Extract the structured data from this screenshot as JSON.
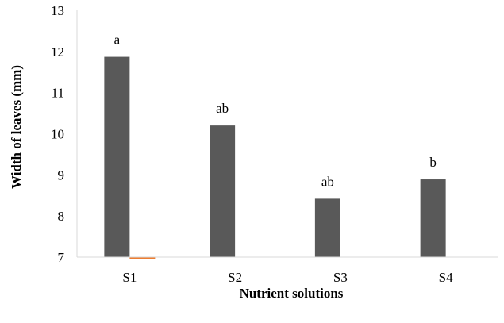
{
  "chart_data": {
    "type": "bar",
    "title": "",
    "xlabel": "Nutrient solutions",
    "ylabel": "Width of leaves  (mm)",
    "categories": [
      "S1",
      "S2",
      "S3",
      "S4"
    ],
    "ylim": [
      7,
      13
    ],
    "yticks": [
      7,
      8,
      9,
      10,
      11,
      12,
      13
    ],
    "grid": false,
    "series": [
      {
        "values": [
          11.87,
          10.2,
          8.42,
          8.89
        ],
        "color": "#595959"
      },
      {
        "values": [
          6.97,
          7.0,
          7.0,
          7.0
        ],
        "color": "#ed7d31"
      }
    ],
    "annotations": [
      "a",
      "ab",
      "ab",
      "b"
    ]
  }
}
